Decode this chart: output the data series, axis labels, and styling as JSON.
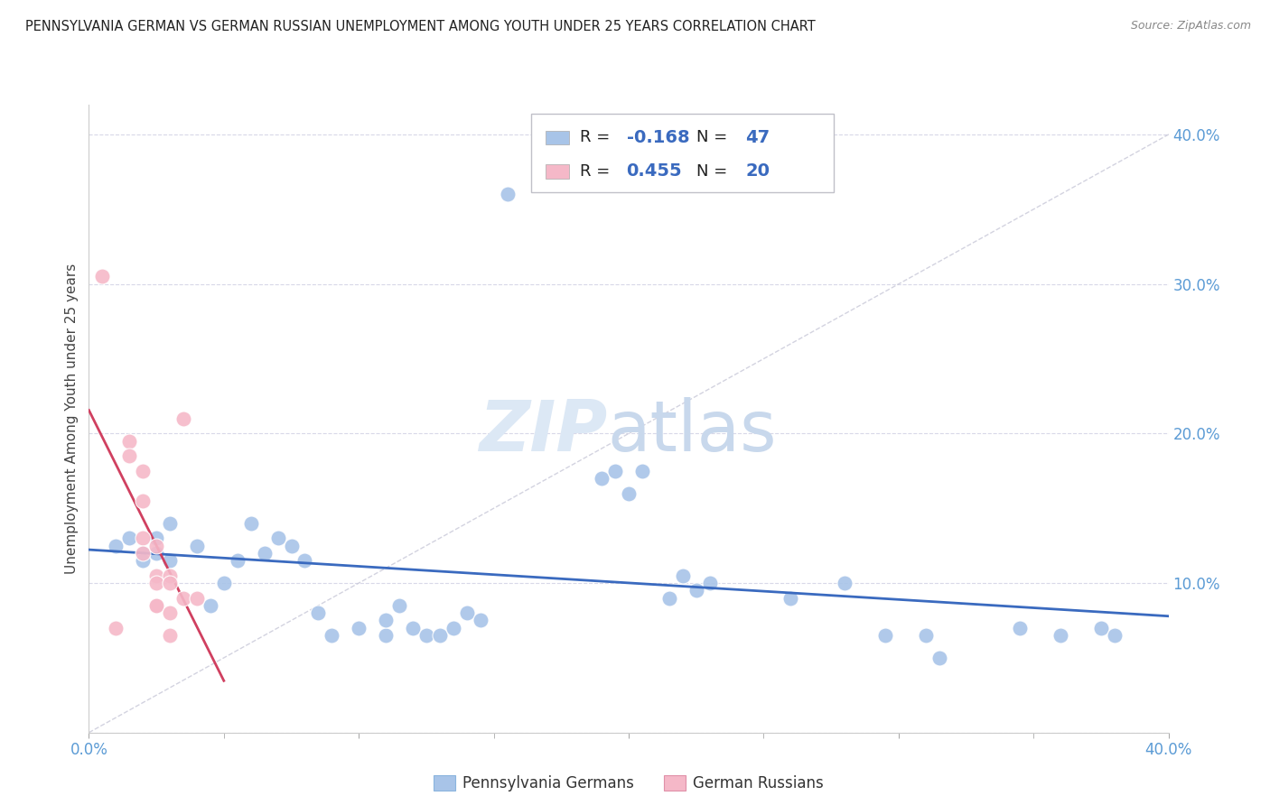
{
  "title": "PENNSYLVANIA GERMAN VS GERMAN RUSSIAN UNEMPLOYMENT AMONG YOUTH UNDER 25 YEARS CORRELATION CHART",
  "source": "Source: ZipAtlas.com",
  "ylabel": "Unemployment Among Youth under 25 years",
  "xlim": [
    0.0,
    0.4
  ],
  "ylim": [
    0.0,
    0.42
  ],
  "blue_color": "#a8c4e8",
  "pink_color": "#f5b8c8",
  "blue_line_color": "#3a6abf",
  "pink_line_color": "#d04060",
  "diagonal_color": "#c8c8d8",
  "background_color": "#ffffff",
  "grid_color": "#d8d8e8",
  "R_blue": -0.168,
  "N_blue": 47,
  "R_pink": 0.455,
  "N_pink": 20,
  "legend_label_blue": "Pennsylvania Germans",
  "legend_label_pink": "German Russians",
  "tick_color": "#5b9bd5",
  "blue_points": [
    [
      0.01,
      0.125
    ],
    [
      0.015,
      0.13
    ],
    [
      0.02,
      0.12
    ],
    [
      0.02,
      0.115
    ],
    [
      0.025,
      0.13
    ],
    [
      0.025,
      0.12
    ],
    [
      0.03,
      0.14
    ],
    [
      0.03,
      0.115
    ],
    [
      0.04,
      0.125
    ],
    [
      0.045,
      0.085
    ],
    [
      0.05,
      0.1
    ],
    [
      0.055,
      0.115
    ],
    [
      0.06,
      0.14
    ],
    [
      0.065,
      0.12
    ],
    [
      0.07,
      0.13
    ],
    [
      0.075,
      0.125
    ],
    [
      0.08,
      0.115
    ],
    [
      0.085,
      0.08
    ],
    [
      0.09,
      0.065
    ],
    [
      0.1,
      0.07
    ],
    [
      0.11,
      0.065
    ],
    [
      0.11,
      0.075
    ],
    [
      0.115,
      0.085
    ],
    [
      0.12,
      0.07
    ],
    [
      0.125,
      0.065
    ],
    [
      0.13,
      0.065
    ],
    [
      0.135,
      0.07
    ],
    [
      0.14,
      0.08
    ],
    [
      0.145,
      0.075
    ],
    [
      0.155,
      0.36
    ],
    [
      0.19,
      0.17
    ],
    [
      0.195,
      0.175
    ],
    [
      0.2,
      0.16
    ],
    [
      0.205,
      0.175
    ],
    [
      0.215,
      0.09
    ],
    [
      0.22,
      0.105
    ],
    [
      0.225,
      0.095
    ],
    [
      0.23,
      0.1
    ],
    [
      0.26,
      0.09
    ],
    [
      0.28,
      0.1
    ],
    [
      0.295,
      0.065
    ],
    [
      0.31,
      0.065
    ],
    [
      0.315,
      0.05
    ],
    [
      0.345,
      0.07
    ],
    [
      0.36,
      0.065
    ],
    [
      0.375,
      0.07
    ],
    [
      0.38,
      0.065
    ]
  ],
  "pink_points": [
    [
      0.005,
      0.305
    ],
    [
      0.01,
      0.07
    ],
    [
      0.015,
      0.195
    ],
    [
      0.015,
      0.185
    ],
    [
      0.02,
      0.175
    ],
    [
      0.02,
      0.155
    ],
    [
      0.02,
      0.13
    ],
    [
      0.02,
      0.12
    ],
    [
      0.025,
      0.085
    ],
    [
      0.025,
      0.125
    ],
    [
      0.025,
      0.105
    ],
    [
      0.025,
      0.1
    ],
    [
      0.025,
      0.085
    ],
    [
      0.03,
      0.105
    ],
    [
      0.03,
      0.1
    ],
    [
      0.03,
      0.08
    ],
    [
      0.03,
      0.065
    ],
    [
      0.035,
      0.09
    ],
    [
      0.035,
      0.21
    ],
    [
      0.04,
      0.09
    ]
  ],
  "pink_line_x": [
    0.0,
    0.05
  ],
  "blue_line_x": [
    0.0,
    0.4
  ]
}
